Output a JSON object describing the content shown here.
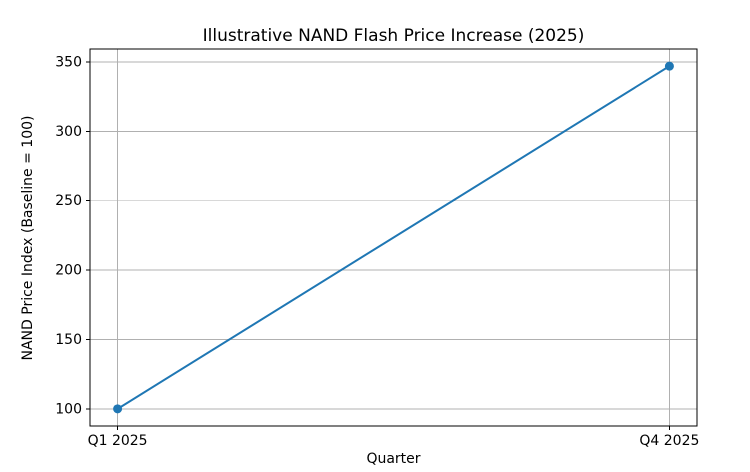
{
  "chart_data": {
    "type": "line",
    "title": "Illustrative NAND Flash Price Increase (2025)",
    "xlabel": "Quarter",
    "ylabel": "NAND Price Index (Baseline = 100)",
    "categories": [
      "Q1 2025",
      "Q4 2025"
    ],
    "series": [
      {
        "name": "NAND Price Index",
        "values": [
          100,
          347
        ]
      }
    ],
    "yticks": [
      100,
      150,
      200,
      250,
      300,
      350
    ],
    "ylim": [
      87.65,
      359.35
    ],
    "xlim": [
      -0.05,
      1.05
    ],
    "grid": true,
    "legend": false,
    "colors": {
      "line": "#1f77b4",
      "marker": "#1f77b4",
      "grid": "#b0b0b0",
      "spine": "#000000",
      "tick": "#000000",
      "background": "#ffffff"
    },
    "tick_font_size": 14,
    "marker_style": "o"
  }
}
